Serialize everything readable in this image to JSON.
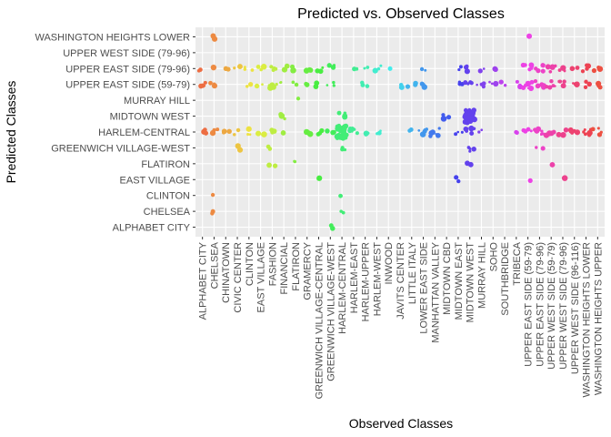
{
  "chart_data": {
    "type": "scatter",
    "title": "Predicted vs. Observed Classes",
    "xlabel": "Observed Classes",
    "ylabel": "Predicted Classes",
    "grid": true,
    "legend": "none",
    "jitter": true,
    "x_categories": [
      "ALPHABET CITY",
      "CHELSEA",
      "CHINATOWN",
      "CIVIC CENTER",
      "CLINTON",
      "EAST VILLAGE",
      "FASHION",
      "FINANCIAL",
      "FLATIRON",
      "GRAMERCY",
      "GREENWICH VILLAGE-CENTRAL",
      "GREENWICH VILLAGE-WEST",
      "HARLEM-CENTRAL",
      "HARLEM-EAST",
      "HARLEM-UPPER",
      "HARLEM-WEST",
      "INWOOD",
      "JAVITS CENTER",
      "LITTLE ITALY",
      "LOWER EAST SIDE",
      "MANHATTAN VALLEY",
      "MIDTOWN CBD",
      "MIDTOWN EAST",
      "MIDTOWN WEST",
      "MURRAY HILL",
      "SOHO",
      "SOUTHBRIDGE",
      "TRIBECA",
      "UPPER EAST SIDE (59-79)",
      "UPPER EAST SIDE (79-96)",
      "UPPER WEST SIDE (59-79)",
      "UPPER WEST SIDE (79-96)",
      "UPPER WEST SIDE (96-116)",
      "WASHINGTON HEIGHTS LOWER",
      "WASHINGTON HEIGHTS UPPER"
    ],
    "y_categories": [
      "ALPHABET CITY",
      "CHELSEA",
      "CLINTON",
      "EAST VILLAGE",
      "FLATIRON",
      "GREENWICH VILLAGE-WEST",
      "HARLEM-CENTRAL",
      "MIDTOWN WEST",
      "MURRAY HILL",
      "UPPER EAST SIDE (59-79)",
      "UPPER EAST SIDE (79-96)",
      "UPPER WEST SIDE (79-96)",
      "WASHINGTON HEIGHTS LOWER"
    ],
    "points": [
      {
        "x": "ALPHABET CITY",
        "y": "UPPER EAST SIDE (79-96)",
        "count": 2
      },
      {
        "x": "ALPHABET CITY",
        "y": "UPPER EAST SIDE (59-79)",
        "count": 4
      },
      {
        "x": "ALPHABET CITY",
        "y": "HARLEM-CENTRAL",
        "count": 3
      },
      {
        "x": "CHELSEA",
        "y": "WASHINGTON HEIGHTS LOWER",
        "count": 2
      },
      {
        "x": "CHELSEA",
        "y": "UPPER EAST SIDE (79-96)",
        "count": 2
      },
      {
        "x": "CHELSEA",
        "y": "UPPER EAST SIDE (59-79)",
        "count": 3
      },
      {
        "x": "CHELSEA",
        "y": "HARLEM-CENTRAL",
        "count": 3
      },
      {
        "x": "CHELSEA",
        "y": "CLINTON",
        "count": 1
      },
      {
        "x": "CHELSEA",
        "y": "CHELSEA",
        "count": 2
      },
      {
        "x": "CHINATOWN",
        "y": "UPPER EAST SIDE (79-96)",
        "count": 2
      },
      {
        "x": "CHINATOWN",
        "y": "HARLEM-CENTRAL",
        "count": 3
      },
      {
        "x": "CIVIC CENTER",
        "y": "UPPER EAST SIDE (79-96)",
        "count": 2
      },
      {
        "x": "CIVIC CENTER",
        "y": "HARLEM-CENTRAL",
        "count": 2
      },
      {
        "x": "CIVIC CENTER",
        "y": "GREENWICH VILLAGE-WEST",
        "count": 2
      },
      {
        "x": "CLINTON",
        "y": "UPPER EAST SIDE (79-96)",
        "count": 3
      },
      {
        "x": "CLINTON",
        "y": "UPPER EAST SIDE (59-79)",
        "count": 2
      },
      {
        "x": "CLINTON",
        "y": "HARLEM-CENTRAL",
        "count": 3
      },
      {
        "x": "EAST VILLAGE",
        "y": "UPPER EAST SIDE (79-96)",
        "count": 3
      },
      {
        "x": "EAST VILLAGE",
        "y": "UPPER EAST SIDE (59-79)",
        "count": 3
      },
      {
        "x": "EAST VILLAGE",
        "y": "HARLEM-CENTRAL",
        "count": 4
      },
      {
        "x": "FASHION",
        "y": "UPPER EAST SIDE (79-96)",
        "count": 4
      },
      {
        "x": "FASHION",
        "y": "UPPER EAST SIDE (59-79)",
        "count": 5
      },
      {
        "x": "FASHION",
        "y": "HARLEM-CENTRAL",
        "count": 3
      },
      {
        "x": "FASHION",
        "y": "GREENWICH VILLAGE-WEST",
        "count": 3
      },
      {
        "x": "FASHION",
        "y": "FLATIRON",
        "count": 2
      },
      {
        "x": "FINANCIAL",
        "y": "UPPER EAST SIDE (79-96)",
        "count": 2
      },
      {
        "x": "FINANCIAL",
        "y": "UPPER EAST SIDE (59-79)",
        "count": 2
      },
      {
        "x": "FINANCIAL",
        "y": "MIDTOWN WEST",
        "count": 3
      },
      {
        "x": "FINANCIAL",
        "y": "HARLEM-CENTRAL",
        "count": 2
      },
      {
        "x": "FLATIRON",
        "y": "UPPER EAST SIDE (79-96)",
        "count": 3
      },
      {
        "x": "FLATIRON",
        "y": "UPPER EAST SIDE (59-79)",
        "count": 2
      },
      {
        "x": "FLATIRON",
        "y": "MURRAY HILL",
        "count": 1
      },
      {
        "x": "FLATIRON",
        "y": "FLATIRON",
        "count": 2
      },
      {
        "x": "GRAMERCY",
        "y": "UPPER EAST SIDE (79-96)",
        "count": 3
      },
      {
        "x": "GRAMERCY",
        "y": "UPPER EAST SIDE (59-79)",
        "count": 2
      },
      {
        "x": "GRAMERCY",
        "y": "HARLEM-CENTRAL",
        "count": 3
      },
      {
        "x": "GREENWICH VILLAGE-CENTRAL",
        "y": "UPPER EAST SIDE (79-96)",
        "count": 3
      },
      {
        "x": "GREENWICH VILLAGE-CENTRAL",
        "y": "UPPER EAST SIDE (59-79)",
        "count": 2
      },
      {
        "x": "GREENWICH VILLAGE-CENTRAL",
        "y": "HARLEM-CENTRAL",
        "count": 3
      },
      {
        "x": "GREENWICH VILLAGE-CENTRAL",
        "y": "EAST VILLAGE",
        "count": 2
      },
      {
        "x": "GREENWICH VILLAGE-WEST",
        "y": "UPPER EAST SIDE (79-96)",
        "count": 4
      },
      {
        "x": "GREENWICH VILLAGE-WEST",
        "y": "UPPER EAST SIDE (59-79)",
        "count": 3
      },
      {
        "x": "GREENWICH VILLAGE-WEST",
        "y": "HARLEM-CENTRAL",
        "count": 3
      },
      {
        "x": "GREENWICH VILLAGE-WEST",
        "y": "ALPHABET CITY",
        "count": 3
      },
      {
        "x": "HARLEM-CENTRAL",
        "y": "HARLEM-CENTRAL",
        "count": 40
      },
      {
        "x": "HARLEM-CENTRAL",
        "y": "MIDTOWN WEST",
        "count": 4
      },
      {
        "x": "HARLEM-CENTRAL",
        "y": "GREENWICH VILLAGE-WEST",
        "count": 3
      },
      {
        "x": "HARLEM-CENTRAL",
        "y": "CHELSEA",
        "count": 2
      },
      {
        "x": "HARLEM-CENTRAL",
        "y": "CLINTON",
        "count": 1
      },
      {
        "x": "HARLEM-EAST",
        "y": "UPPER EAST SIDE (79-96)",
        "count": 2
      },
      {
        "x": "HARLEM-EAST",
        "y": "HARLEM-CENTRAL",
        "count": 6
      },
      {
        "x": "HARLEM-UPPER",
        "y": "UPPER EAST SIDE (79-96)",
        "count": 2
      },
      {
        "x": "HARLEM-UPPER",
        "y": "UPPER EAST SIDE (59-79)",
        "count": 3
      },
      {
        "x": "HARLEM-UPPER",
        "y": "HARLEM-CENTRAL",
        "count": 3
      },
      {
        "x": "HARLEM-WEST",
        "y": "UPPER EAST SIDE (79-96)",
        "count": 3
      },
      {
        "x": "HARLEM-WEST",
        "y": "HARLEM-CENTRAL",
        "count": 3
      },
      {
        "x": "INWOOD",
        "y": "UPPER EAST SIDE (79-96)",
        "count": 2
      },
      {
        "x": "JAVITS CENTER",
        "y": "UPPER EAST SIDE (59-79)",
        "count": 3
      },
      {
        "x": "LITTLE ITALY",
        "y": "UPPER EAST SIDE (59-79)",
        "count": 3
      },
      {
        "x": "LITTLE ITALY",
        "y": "HARLEM-CENTRAL",
        "count": 2
      },
      {
        "x": "LOWER EAST SIDE",
        "y": "UPPER EAST SIDE (79-96)",
        "count": 2
      },
      {
        "x": "LOWER EAST SIDE",
        "y": "UPPER EAST SIDE (59-79)",
        "count": 4
      },
      {
        "x": "LOWER EAST SIDE",
        "y": "HARLEM-CENTRAL",
        "count": 5
      },
      {
        "x": "MANHATTAN VALLEY",
        "y": "HARLEM-CENTRAL",
        "count": 8
      },
      {
        "x": "MIDTOWN CBD",
        "y": "MIDTOWN WEST",
        "count": 3
      },
      {
        "x": "MIDTOWN EAST",
        "y": "UPPER EAST SIDE (79-96)",
        "count": 2
      },
      {
        "x": "MIDTOWN EAST",
        "y": "UPPER EAST SIDE (59-79)",
        "count": 3
      },
      {
        "x": "MIDTOWN EAST",
        "y": "HARLEM-CENTRAL",
        "count": 3
      },
      {
        "x": "MIDTOWN EAST",
        "y": "EAST VILLAGE",
        "count": 2
      },
      {
        "x": "MIDTOWN WEST",
        "y": "MIDTOWN WEST",
        "count": 30
      },
      {
        "x": "MIDTOWN WEST",
        "y": "UPPER EAST SIDE (79-96)",
        "count": 3
      },
      {
        "x": "MIDTOWN WEST",
        "y": "UPPER EAST SIDE (59-79)",
        "count": 4
      },
      {
        "x": "MIDTOWN WEST",
        "y": "HARLEM-CENTRAL",
        "count": 6
      },
      {
        "x": "MIDTOWN WEST",
        "y": "GREENWICH VILLAGE-WEST",
        "count": 5
      },
      {
        "x": "MIDTOWN WEST",
        "y": "FLATIRON",
        "count": 2
      },
      {
        "x": "MURRAY HILL",
        "y": "UPPER EAST SIDE (79-96)",
        "count": 2
      },
      {
        "x": "MURRAY HILL",
        "y": "UPPER EAST SIDE (59-79)",
        "count": 4
      },
      {
        "x": "MURRAY HILL",
        "y": "HARLEM-CENTRAL",
        "count": 2
      },
      {
        "x": "SOHO",
        "y": "UPPER EAST SIDE (79-96)",
        "count": 2
      },
      {
        "x": "SOHO",
        "y": "UPPER EAST SIDE (59-79)",
        "count": 3
      },
      {
        "x": "SOUTHBRIDGE",
        "y": "UPPER EAST SIDE (59-79)",
        "count": 2
      },
      {
        "x": "TRIBECA",
        "y": "UPPER EAST SIDE (59-79)",
        "count": 3
      },
      {
        "x": "TRIBECA",
        "y": "HARLEM-CENTRAL",
        "count": 2
      },
      {
        "x": "UPPER EAST SIDE (59-79)",
        "y": "WASHINGTON HEIGHTS LOWER",
        "count": 1
      },
      {
        "x": "UPPER EAST SIDE (59-79)",
        "y": "UPPER EAST SIDE (79-96)",
        "count": 6
      },
      {
        "x": "UPPER EAST SIDE (59-79)",
        "y": "UPPER EAST SIDE (59-79)",
        "count": 8
      },
      {
        "x": "UPPER EAST SIDE (59-79)",
        "y": "HARLEM-CENTRAL",
        "count": 5
      },
      {
        "x": "UPPER EAST SIDE (59-79)",
        "y": "EAST VILLAGE",
        "count": 1
      },
      {
        "x": "UPPER EAST SIDE (79-96)",
        "y": "UPPER EAST SIDE (79-96)",
        "count": 6
      },
      {
        "x": "UPPER EAST SIDE (79-96)",
        "y": "UPPER EAST SIDE (59-79)",
        "count": 7
      },
      {
        "x": "UPPER EAST SIDE (79-96)",
        "y": "HARLEM-CENTRAL",
        "count": 7
      },
      {
        "x": "UPPER EAST SIDE (79-96)",
        "y": "GREENWICH VILLAGE-WEST",
        "count": 2
      },
      {
        "x": "UPPER WEST SIDE (59-79)",
        "y": "UPPER EAST SIDE (79-96)",
        "count": 4
      },
      {
        "x": "UPPER WEST SIDE (59-79)",
        "y": "UPPER EAST SIDE (59-79)",
        "count": 5
      },
      {
        "x": "UPPER WEST SIDE (59-79)",
        "y": "HARLEM-CENTRAL",
        "count": 5
      },
      {
        "x": "UPPER WEST SIDE (59-79)",
        "y": "FLATIRON",
        "count": 1
      },
      {
        "x": "UPPER WEST SIDE (79-96)",
        "y": "UPPER EAST SIDE (79-96)",
        "count": 4
      },
      {
        "x": "UPPER WEST SIDE (79-96)",
        "y": "UPPER EAST SIDE (59-79)",
        "count": 4
      },
      {
        "x": "UPPER WEST SIDE (79-96)",
        "y": "HARLEM-CENTRAL",
        "count": 4
      },
      {
        "x": "UPPER WEST SIDE (79-96)",
        "y": "EAST VILLAGE",
        "count": 1
      },
      {
        "x": "UPPER WEST SIDE (96-116)",
        "y": "UPPER EAST SIDE (79-96)",
        "count": 3
      },
      {
        "x": "UPPER WEST SIDE (96-116)",
        "y": "UPPER EAST SIDE (59-79)",
        "count": 3
      },
      {
        "x": "UPPER WEST SIDE (96-116)",
        "y": "HARLEM-CENTRAL",
        "count": 6
      },
      {
        "x": "WASHINGTON HEIGHTS LOWER",
        "y": "UPPER EAST SIDE (79-96)",
        "count": 4
      },
      {
        "x": "WASHINGTON HEIGHTS LOWER",
        "y": "UPPER EAST SIDE (59-79)",
        "count": 3
      },
      {
        "x": "WASHINGTON HEIGHTS LOWER",
        "y": "HARLEM-CENTRAL",
        "count": 7
      },
      {
        "x": "WASHINGTON HEIGHTS UPPER",
        "y": "UPPER EAST SIDE (79-96)",
        "count": 3
      },
      {
        "x": "WASHINGTON HEIGHTS UPPER",
        "y": "UPPER EAST SIDE (59-79)",
        "count": 3
      },
      {
        "x": "WASHINGTON HEIGHTS UPPER",
        "y": "HARLEM-CENTRAL",
        "count": 6
      }
    ]
  }
}
